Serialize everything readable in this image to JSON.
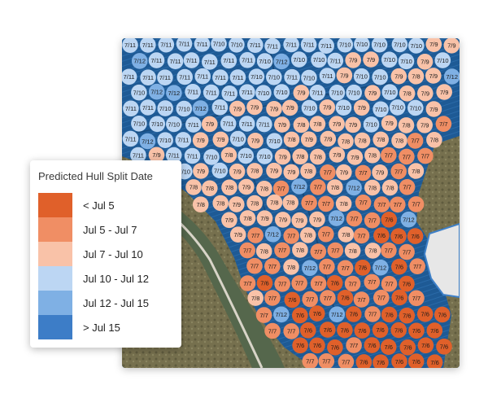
{
  "legend": {
    "title": "Predicted Hull Split Date",
    "items": [
      {
        "label": "< Jul 5",
        "color": "#e0602a"
      },
      {
        "label": "Jul 5 - Jul 7",
        "color": "#f08e64"
      },
      {
        "label": "Jul 7 - Jul 10",
        "color": "#f9c2a8"
      },
      {
        "label": "Jul 10 - Jul 12",
        "color": "#bcd6f3"
      },
      {
        "label": "Jul 12 - Jul 15",
        "color": "#7fb0e4"
      },
      {
        "label": "> Jul 15",
        "color": "#3d7dc7"
      }
    ]
  },
  "map": {
    "date_labels": [
      "7/6",
      "7/7",
      "7/8",
      "7/9",
      "7/10",
      "7/11",
      "7/12"
    ],
    "orchard_color": "#1e5a95",
    "terrain_color": "#6f6a4a",
    "river_color": "#4d5f4a",
    "levee_color": "#d8d4c8"
  }
}
